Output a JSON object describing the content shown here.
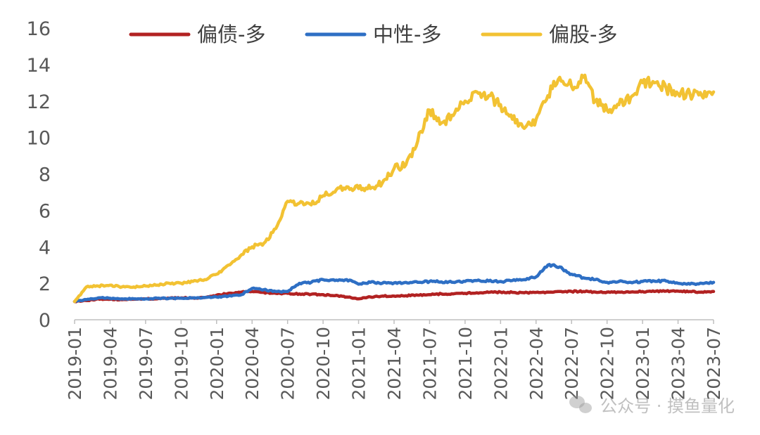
{
  "chart_data": {
    "type": "line",
    "title": "",
    "xlabel": "",
    "ylabel": "",
    "ylim": [
      0,
      16
    ],
    "yticks": [
      0,
      2,
      4,
      6,
      8,
      10,
      12,
      14,
      16
    ],
    "x_start": "2019-01",
    "x_end": "2023-07",
    "x_ticks": [
      "2019-01",
      "2019-04",
      "2019-07",
      "2019-10",
      "2020-01",
      "2020-04",
      "2020-07",
      "2020-10",
      "2021-01",
      "2021-04",
      "2021-07",
      "2021-10",
      "2022-01",
      "2022-04",
      "2022-07",
      "2022-10",
      "2023-01",
      "2023-04",
      "2023-07"
    ],
    "legend_position": "top",
    "grid": false,
    "series": [
      {
        "name": "偏债-多",
        "color": "#B22222",
        "points": [
          [
            "2019-01",
            1.0
          ],
          [
            "2019-02",
            1.05
          ],
          [
            "2019-03",
            1.15
          ],
          [
            "2019-04",
            1.12
          ],
          [
            "2019-05",
            1.1
          ],
          [
            "2019-06",
            1.12
          ],
          [
            "2019-07",
            1.15
          ],
          [
            "2019-08",
            1.15
          ],
          [
            "2019-09",
            1.18
          ],
          [
            "2019-10",
            1.2
          ],
          [
            "2019-11",
            1.2
          ],
          [
            "2019-12",
            1.22
          ],
          [
            "2020-01",
            1.35
          ],
          [
            "2020-02",
            1.45
          ],
          [
            "2020-03",
            1.5
          ],
          [
            "2020-04",
            1.55
          ],
          [
            "2020-05",
            1.5
          ],
          [
            "2020-06",
            1.45
          ],
          [
            "2020-07",
            1.45
          ],
          [
            "2020-08",
            1.42
          ],
          [
            "2020-09",
            1.4
          ],
          [
            "2020-10",
            1.38
          ],
          [
            "2020-11",
            1.32
          ],
          [
            "2020-12",
            1.25
          ],
          [
            "2021-01",
            1.15
          ],
          [
            "2021-02",
            1.25
          ],
          [
            "2021-03",
            1.3
          ],
          [
            "2021-04",
            1.3
          ],
          [
            "2021-05",
            1.32
          ],
          [
            "2021-06",
            1.35
          ],
          [
            "2021-07",
            1.38
          ],
          [
            "2021-08",
            1.42
          ],
          [
            "2021-09",
            1.42
          ],
          [
            "2021-10",
            1.45
          ],
          [
            "2021-11",
            1.48
          ],
          [
            "2021-12",
            1.5
          ],
          [
            "2022-01",
            1.52
          ],
          [
            "2022-02",
            1.5
          ],
          [
            "2022-03",
            1.48
          ],
          [
            "2022-04",
            1.5
          ],
          [
            "2022-05",
            1.52
          ],
          [
            "2022-06",
            1.55
          ],
          [
            "2022-07",
            1.55
          ],
          [
            "2022-08",
            1.55
          ],
          [
            "2022-09",
            1.52
          ],
          [
            "2022-10",
            1.52
          ],
          [
            "2022-11",
            1.52
          ],
          [
            "2022-12",
            1.52
          ],
          [
            "2023-01",
            1.55
          ],
          [
            "2023-02",
            1.55
          ],
          [
            "2023-03",
            1.57
          ],
          [
            "2023-04",
            1.57
          ],
          [
            "2023-05",
            1.55
          ],
          [
            "2023-06",
            1.52
          ],
          [
            "2023-07",
            1.55
          ]
        ]
      },
      {
        "name": "中性-多",
        "color": "#2E6FC4",
        "points": [
          [
            "2019-01",
            1.0
          ],
          [
            "2019-02",
            1.1
          ],
          [
            "2019-03",
            1.2
          ],
          [
            "2019-04",
            1.18
          ],
          [
            "2019-05",
            1.15
          ],
          [
            "2019-06",
            1.15
          ],
          [
            "2019-07",
            1.15
          ],
          [
            "2019-08",
            1.18
          ],
          [
            "2019-09",
            1.18
          ],
          [
            "2019-10",
            1.18
          ],
          [
            "2019-11",
            1.2
          ],
          [
            "2019-12",
            1.22
          ],
          [
            "2020-01",
            1.25
          ],
          [
            "2020-02",
            1.3
          ],
          [
            "2020-03",
            1.35
          ],
          [
            "2020-04",
            1.72
          ],
          [
            "2020-05",
            1.65
          ],
          [
            "2020-06",
            1.55
          ],
          [
            "2020-07",
            1.55
          ],
          [
            "2020-08",
            2.0
          ],
          [
            "2020-09",
            2.05
          ],
          [
            "2020-10",
            2.2
          ],
          [
            "2020-11",
            2.15
          ],
          [
            "2020-12",
            2.2
          ],
          [
            "2021-01",
            1.95
          ],
          [
            "2021-02",
            2.05
          ],
          [
            "2021-03",
            2.0
          ],
          [
            "2021-04",
            2.02
          ],
          [
            "2021-05",
            2.05
          ],
          [
            "2021-06",
            2.05
          ],
          [
            "2021-07",
            2.1
          ],
          [
            "2021-08",
            2.08
          ],
          [
            "2021-09",
            2.05
          ],
          [
            "2021-10",
            2.1
          ],
          [
            "2021-11",
            2.15
          ],
          [
            "2021-12",
            2.12
          ],
          [
            "2022-01",
            2.1
          ],
          [
            "2022-02",
            2.15
          ],
          [
            "2022-03",
            2.2
          ],
          [
            "2022-04",
            2.35
          ],
          [
            "2022-05",
            3.0
          ],
          [
            "2022-06",
            2.9
          ],
          [
            "2022-07",
            2.5
          ],
          [
            "2022-08",
            2.3
          ],
          [
            "2022-09",
            2.2
          ],
          [
            "2022-10",
            2.05
          ],
          [
            "2022-11",
            2.1
          ],
          [
            "2022-12",
            2.05
          ],
          [
            "2023-01",
            2.1
          ],
          [
            "2023-02",
            2.12
          ],
          [
            "2023-03",
            2.12
          ],
          [
            "2023-04",
            2.0
          ],
          [
            "2023-05",
            1.95
          ],
          [
            "2023-06",
            2.0
          ],
          [
            "2023-07",
            2.05
          ]
        ]
      },
      {
        "name": "偏股-多",
        "color": "#F2C233",
        "points": [
          [
            "2019-01",
            1.0
          ],
          [
            "2019-02",
            1.8
          ],
          [
            "2019-03",
            1.85
          ],
          [
            "2019-04",
            1.9
          ],
          [
            "2019-05",
            1.8
          ],
          [
            "2019-06",
            1.8
          ],
          [
            "2019-07",
            1.85
          ],
          [
            "2019-08",
            1.9
          ],
          [
            "2019-09",
            2.0
          ],
          [
            "2019-10",
            2.0
          ],
          [
            "2019-11",
            2.1
          ],
          [
            "2019-12",
            2.2
          ],
          [
            "2020-01",
            2.5
          ],
          [
            "2020-02",
            3.0
          ],
          [
            "2020-03",
            3.5
          ],
          [
            "2020-04",
            4.0
          ],
          [
            "2020-05",
            4.2
          ],
          [
            "2020-06",
            5.0
          ],
          [
            "2020-07",
            6.5
          ],
          [
            "2020-08",
            6.4
          ],
          [
            "2020-09",
            6.3
          ],
          [
            "2020-10",
            6.8
          ],
          [
            "2020-11",
            7.0
          ],
          [
            "2020-12",
            7.3
          ],
          [
            "2021-01",
            7.2
          ],
          [
            "2021-02",
            7.2
          ],
          [
            "2021-03",
            7.5
          ],
          [
            "2021-04",
            8.3
          ],
          [
            "2021-05",
            8.5
          ],
          [
            "2021-06",
            9.8
          ],
          [
            "2021-07",
            11.5
          ],
          [
            "2021-08",
            10.8
          ],
          [
            "2021-09",
            11.2
          ],
          [
            "2021-10",
            12.0
          ],
          [
            "2021-11",
            12.5
          ],
          [
            "2021-12",
            12.3
          ],
          [
            "2022-01",
            11.8
          ],
          [
            "2022-02",
            11.0
          ],
          [
            "2022-03",
            10.5
          ],
          [
            "2022-04",
            11.0
          ],
          [
            "2022-05",
            12.3
          ],
          [
            "2022-06",
            13.3
          ],
          [
            "2022-07",
            12.8
          ],
          [
            "2022-08",
            13.3
          ],
          [
            "2022-09",
            12.0
          ],
          [
            "2022-10",
            11.5
          ],
          [
            "2022-11",
            11.8
          ],
          [
            "2022-12",
            12.2
          ],
          [
            "2023-01",
            13.0
          ],
          [
            "2023-02",
            13.0
          ],
          [
            "2023-03",
            12.7
          ],
          [
            "2023-04",
            12.4
          ],
          [
            "2023-05",
            12.4
          ],
          [
            "2023-06",
            12.3
          ],
          [
            "2023-07",
            12.5
          ]
        ]
      }
    ]
  },
  "watermark": {
    "text": "公众号 · 摸鱼量化",
    "icon": "wechat-icon"
  }
}
